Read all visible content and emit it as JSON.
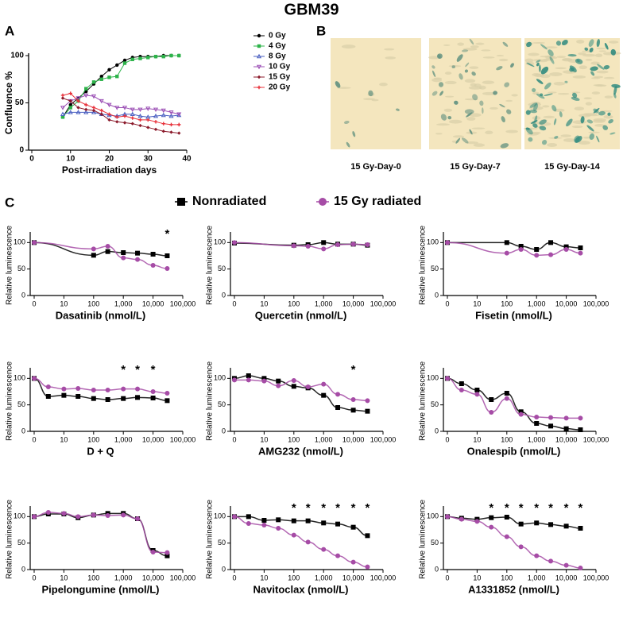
{
  "title": "GBM39",
  "panel_labels": [
    "A",
    "B",
    "C"
  ],
  "images": [
    {
      "caption": "15 Gy-Day-0"
    },
    {
      "caption": "15 Gy-Day-7"
    },
    {
      "caption": "15 Gy-Day-14"
    }
  ],
  "legend_C": [
    {
      "name": "Nonradiated",
      "color": "#000000"
    },
    {
      "name": "15 Gy radiated",
      "color": "#a64ca6"
    }
  ],
  "chart_data": [
    {
      "type": "line",
      "xlabel": "Post-irradiation days",
      "ylabel": "Confluence %",
      "xlim": [
        0,
        40
      ],
      "xticks": [
        0,
        10,
        20,
        30,
        40
      ],
      "ylim": [
        0,
        100
      ],
      "yticks": [
        0,
        50,
        100
      ],
      "legend": "top-right",
      "x": [
        8,
        10,
        12,
        14,
        16,
        18,
        20,
        22,
        24,
        26,
        28,
        30,
        32,
        34,
        36,
        38
      ],
      "series": [
        {
          "name": "0 Gy",
          "color": "#000000",
          "marker": "circle",
          "values": [
            35,
            48,
            55,
            62,
            70,
            78,
            85,
            90,
            95,
            98,
            99,
            99,
            99,
            100,
            100,
            100
          ]
        },
        {
          "name": "4 Gy",
          "color": "#2db34a",
          "marker": "square",
          "values": [
            35,
            45,
            52,
            65,
            72,
            75,
            77,
            78,
            92,
            96,
            97,
            98,
            99,
            99,
            100,
            100
          ]
        },
        {
          "name": "8 Gy",
          "color": "#4a5fc1",
          "marker": "triangle",
          "values": [
            38,
            40,
            40,
            40,
            40,
            38,
            37,
            36,
            38,
            38,
            36,
            35,
            36,
            37,
            36,
            37
          ]
        },
        {
          "name": "10 Gy",
          "color": "#9b4fb5",
          "marker": "triangle-down",
          "values": [
            45,
            52,
            55,
            58,
            57,
            52,
            48,
            45,
            45,
            43,
            43,
            44,
            43,
            42,
            40,
            38
          ]
        },
        {
          "name": "15 Gy",
          "color": "#8b1a2b",
          "marker": "diamond",
          "values": [
            55,
            52,
            45,
            43,
            42,
            38,
            32,
            30,
            29,
            28,
            26,
            24,
            22,
            20,
            19,
            18
          ]
        },
        {
          "name": "20 Gy",
          "color": "#e8303a",
          "marker": "plus",
          "values": [
            58,
            60,
            52,
            48,
            45,
            42,
            38,
            35,
            36,
            34,
            32,
            32,
            30,
            28,
            27,
            27
          ]
        }
      ]
    },
    {
      "type": "dose_response",
      "xlabel": "Dasatinib (nmol/L)",
      "ylabel": "Relative luminescence",
      "x_scale": "log",
      "xlim": [
        0,
        100000
      ],
      "xticks": [
        0,
        10,
        100,
        {
          "value": 1000,
          "label": "1,000"
        },
        {
          "value": 10000,
          "label": "10,000"
        },
        {
          "value": 100000,
          "label": "100,000"
        }
      ],
      "ylim": [
        0,
        120
      ],
      "yticks": [
        0,
        50,
        100
      ],
      "x": [
        0,
        100,
        300,
        1000,
        3000,
        10000,
        30000
      ],
      "series": [
        {
          "color": "#000000",
          "marker": "square",
          "values": [
            100,
            76,
            83,
            81,
            80,
            78,
            75
          ]
        },
        {
          "color": "#a64ca6",
          "marker": "circle",
          "values": [
            100,
            88,
            93,
            71,
            68,
            57,
            51
          ]
        }
      ],
      "star_label": "*",
      "stars": [
        30000
      ]
    },
    {
      "type": "dose_response",
      "xlabel": "Quercetin (nmol/L)",
      "ylabel": "Relative luminescence",
      "x_scale": "log",
      "xlim": [
        0,
        100000
      ],
      "xticks": [
        0,
        10,
        100,
        {
          "value": 1000,
          "label": "1,000"
        },
        {
          "value": 10000,
          "label": "10,000"
        },
        {
          "value": 100000,
          "label": "100,000"
        }
      ],
      "ylim": [
        0,
        120
      ],
      "yticks": [
        0,
        50,
        100
      ],
      "x": [
        0,
        100,
        300,
        1000,
        3000,
        10000,
        30000
      ],
      "series": [
        {
          "color": "#000000",
          "marker": "square",
          "values": [
            99,
            95,
            96,
            100,
            97,
            97,
            95
          ]
        },
        {
          "color": "#a64ca6",
          "marker": "circle",
          "values": [
            100,
            94,
            93,
            88,
            96,
            97,
            96
          ]
        }
      ],
      "star_label": "*",
      "stars": []
    },
    {
      "type": "dose_response",
      "xlabel": "Fisetin (nmol/L)",
      "ylabel": "Relative luminescence",
      "x_scale": "log",
      "xlim": [
        0,
        100000
      ],
      "xticks": [
        0,
        10,
        100,
        {
          "value": 1000,
          "label": "1,000"
        },
        {
          "value": 10000,
          "label": "10,000"
        },
        {
          "value": 100000,
          "label": "100,000"
        }
      ],
      "ylim": [
        0,
        120
      ],
      "yticks": [
        0,
        50,
        100
      ],
      "x": [
        0,
        100,
        300,
        1000,
        3000,
        10000,
        30000
      ],
      "series": [
        {
          "color": "#000000",
          "marker": "square",
          "values": [
            100,
            100,
            93,
            87,
            100,
            92,
            90
          ]
        },
        {
          "color": "#a64ca6",
          "marker": "circle",
          "values": [
            100,
            80,
            87,
            76,
            77,
            87,
            80
          ]
        }
      ],
      "star_label": "*",
      "stars": []
    },
    {
      "type": "dose_response",
      "xlabel": "D + Q",
      "ylabel": "Relative luminescence",
      "x_scale": "log",
      "xlim": [
        0,
        100000
      ],
      "xticks": [
        0,
        10,
        100,
        {
          "value": 1000,
          "label": "1,000"
        },
        {
          "value": 10000,
          "label": "10,000"
        },
        {
          "value": 100000,
          "label": "100,000"
        }
      ],
      "ylim": [
        0,
        120
      ],
      "yticks": [
        0,
        50,
        100
      ],
      "x": [
        0,
        3,
        10,
        30,
        100,
        300,
        1000,
        3000,
        10000,
        30000
      ],
      "series": [
        {
          "color": "#000000",
          "marker": "square",
          "values": [
            100,
            66,
            68,
            66,
            62,
            60,
            62,
            64,
            63,
            58
          ]
        },
        {
          "color": "#a64ca6",
          "marker": "circle",
          "values": [
            100,
            84,
            80,
            81,
            78,
            78,
            80,
            80,
            75,
            72
          ]
        }
      ],
      "star_label": "*",
      "stars": [
        1000,
        3000,
        10000
      ]
    },
    {
      "type": "dose_response",
      "xlabel": "AMG232 (nmol/L)",
      "ylabel": "Relative luminescence",
      "x_scale": "log",
      "xlim": [
        0,
        100000
      ],
      "xticks": [
        0,
        10,
        100,
        {
          "value": 1000,
          "label": "1,000"
        },
        {
          "value": 10000,
          "label": "10,000"
        },
        {
          "value": 100000,
          "label": "100,000"
        }
      ],
      "ylim": [
        0,
        120
      ],
      "yticks": [
        0,
        50,
        100
      ],
      "x": [
        0,
        3,
        10,
        30,
        100,
        300,
        1000,
        3000,
        10000,
        30000
      ],
      "series": [
        {
          "color": "#000000",
          "marker": "square",
          "values": [
            100,
            105,
            100,
            95,
            85,
            82,
            68,
            45,
            40,
            38
          ]
        },
        {
          "color": "#a64ca6",
          "marker": "circle",
          "values": [
            97,
            97,
            95,
            86,
            96,
            84,
            89,
            70,
            60,
            58
          ]
        }
      ],
      "star_label": "*",
      "stars": [
        10000
      ]
    },
    {
      "type": "dose_response",
      "xlabel": "Onalespib (nmol/L)",
      "ylabel": "Relative luminescence",
      "x_scale": "log",
      "xlim": [
        0,
        100000
      ],
      "xticks": [
        0,
        10,
        100,
        {
          "value": 1000,
          "label": "1,000"
        },
        {
          "value": 10000,
          "label": "10,000"
        },
        {
          "value": 100000,
          "label": "100,000"
        }
      ],
      "ylim": [
        0,
        120
      ],
      "yticks": [
        0,
        50,
        100
      ],
      "x": [
        0,
        3,
        10,
        30,
        100,
        300,
        1000,
        3000,
        10000,
        30000
      ],
      "series": [
        {
          "color": "#000000",
          "marker": "square",
          "values": [
            100,
            90,
            78,
            60,
            72,
            37,
            15,
            10,
            5,
            3
          ]
        },
        {
          "color": "#a64ca6",
          "marker": "circle",
          "values": [
            100,
            78,
            70,
            36,
            62,
            32,
            27,
            26,
            25,
            25
          ]
        }
      ],
      "star_label": "*",
      "stars": []
    },
    {
      "type": "dose_response",
      "xlabel": "Pipelongumine (nmol/L)",
      "ylabel": "Relative luminescence",
      "x_scale": "log",
      "xlim": [
        0,
        100000
      ],
      "xticks": [
        0,
        10,
        100,
        {
          "value": 1000,
          "label": "1,000"
        },
        {
          "value": 10000,
          "label": "10,000"
        },
        {
          "value": 100000,
          "label": "100,000"
        }
      ],
      "ylim": [
        0,
        120
      ],
      "yticks": [
        0,
        50,
        100
      ],
      "x": [
        0,
        3,
        10,
        30,
        100,
        300,
        1000,
        3000,
        10000,
        30000
      ],
      "series": [
        {
          "color": "#000000",
          "marker": "square",
          "values": [
            100,
            105,
            105,
            98,
            103,
            106,
            106,
            96,
            36,
            26
          ]
        },
        {
          "color": "#a64ca6",
          "marker": "circle",
          "values": [
            100,
            108,
            106,
            100,
            103,
            102,
            103,
            96,
            33,
            32
          ]
        }
      ],
      "star_label": "*",
      "stars": []
    },
    {
      "type": "dose_response",
      "xlabel": "Navitoclax (nmol/L)",
      "ylabel": "Relative luminescence",
      "x_scale": "log",
      "xlim": [
        0,
        100000
      ],
      "xticks": [
        0,
        10,
        100,
        {
          "value": 1000,
          "label": "1,000"
        },
        {
          "value": 10000,
          "label": "10,000"
        },
        {
          "value": 100000,
          "label": "100,000"
        }
      ],
      "ylim": [
        0,
        120
      ],
      "yticks": [
        0,
        50,
        100
      ],
      "x": [
        0,
        3,
        10,
        30,
        100,
        300,
        1000,
        3000,
        10000,
        30000
      ],
      "series": [
        {
          "color": "#000000",
          "marker": "square",
          "values": [
            100,
            100,
            93,
            94,
            92,
            92,
            88,
            86,
            80,
            64
          ]
        },
        {
          "color": "#a64ca6",
          "marker": "circle",
          "values": [
            100,
            87,
            84,
            78,
            65,
            52,
            38,
            26,
            14,
            5
          ]
        }
      ],
      "star_label": "*",
      "stars": [
        100,
        300,
        1000,
        3000,
        10000,
        30000
      ]
    },
    {
      "type": "dose_response",
      "xlabel": "A1331852 (nmol/L)",
      "ylabel": "Relative luminescence",
      "x_scale": "log",
      "xlim": [
        0,
        100000
      ],
      "xticks": [
        0,
        10,
        100,
        {
          "value": 1000,
          "label": "1,000"
        },
        {
          "value": 10000,
          "label": "10,000"
        },
        {
          "value": 100000,
          "label": "100,000"
        }
      ],
      "ylim": [
        0,
        120
      ],
      "yticks": [
        0,
        50,
        100
      ],
      "x": [
        0,
        3,
        10,
        30,
        100,
        300,
        1000,
        3000,
        10000,
        30000
      ],
      "series": [
        {
          "color": "#000000",
          "marker": "square",
          "values": [
            100,
            97,
            95,
            98,
            99,
            86,
            88,
            85,
            82,
            78
          ]
        },
        {
          "color": "#a64ca6",
          "marker": "circle",
          "values": [
            100,
            95,
            91,
            80,
            62,
            43,
            26,
            16,
            8,
            3
          ]
        }
      ],
      "star_label": "*",
      "stars": [
        30,
        100,
        300,
        1000,
        3000,
        10000,
        30000
      ]
    }
  ]
}
